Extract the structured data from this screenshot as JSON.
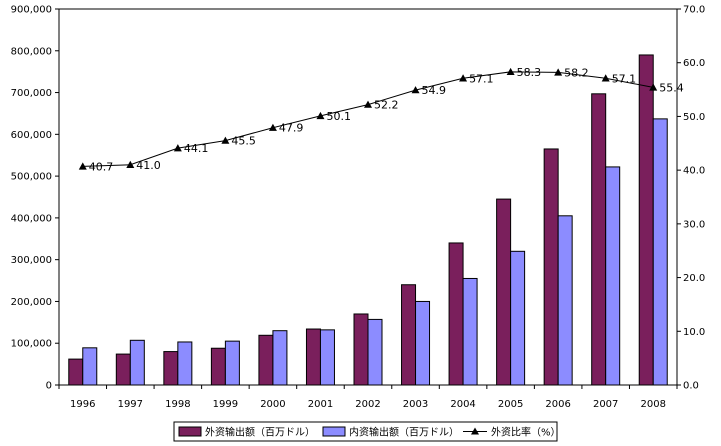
{
  "chart_data": {
    "type": "bar+line",
    "categories": [
      "1996",
      "1997",
      "1998",
      "1999",
      "2000",
      "2001",
      "2002",
      "2003",
      "2004",
      "2005",
      "2006",
      "2007",
      "2008"
    ],
    "series": [
      {
        "name": "外资输出额（百万ドル）",
        "type": "bar",
        "axis": "left",
        "color": "#7a1f5c",
        "values": [
          62000,
          74000,
          80000,
          88000,
          119000,
          134000,
          170000,
          240000,
          340000,
          445000,
          565000,
          697000,
          790000
        ]
      },
      {
        "name": "内资输出额（百万ドル）",
        "type": "bar",
        "axis": "left",
        "color": "#8c8cff",
        "values": [
          89000,
          107000,
          103000,
          105000,
          130000,
          132000,
          157000,
          200000,
          255000,
          320000,
          405000,
          522000,
          637000
        ]
      },
      {
        "name": "外资比率（%）",
        "type": "line",
        "axis": "right",
        "color": "#000000",
        "marker": "triangle",
        "values": [
          40.7,
          41.0,
          44.1,
          45.5,
          47.9,
          50.1,
          52.2,
          54.9,
          57.1,
          58.3,
          58.2,
          57.1,
          55.4
        ]
      }
    ],
    "left_axis": {
      "ylim": [
        0,
        900000
      ],
      "ticks": [
        0,
        100000,
        200000,
        300000,
        400000,
        500000,
        600000,
        700000,
        800000,
        900000
      ],
      "tick_labels": [
        "0",
        "100,000",
        "200,000",
        "300,000",
        "400,000",
        "500,000",
        "600,000",
        "700,000",
        "800,000",
        "900,000"
      ]
    },
    "right_axis": {
      "ylim": [
        0,
        70
      ],
      "ticks": [
        0,
        10,
        20,
        30,
        40,
        50,
        60,
        70
      ],
      "tick_labels": [
        "0.0",
        "10.0",
        "20.0",
        "30.0",
        "40.0",
        "50.0",
        "60.0",
        "70.0"
      ]
    },
    "line_labels": [
      "40.7",
      "41.0",
      "44.1",
      "45.5",
      "47.9",
      "50.1",
      "52.2",
      "54.9",
      "57.1",
      "58.3",
      "58.2",
      "57.1",
      "55.4"
    ],
    "legend_position": "bottom",
    "grid": false
  }
}
